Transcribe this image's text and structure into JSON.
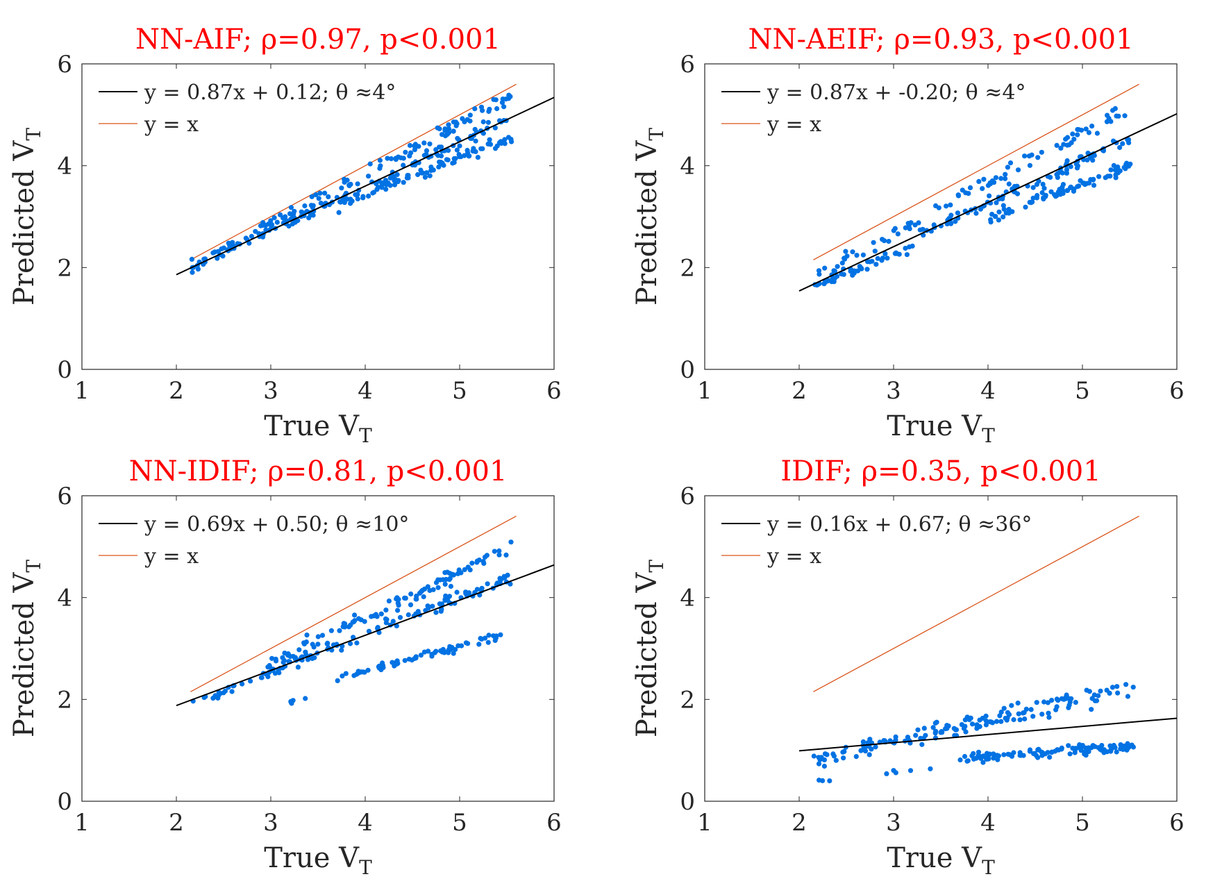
{
  "chart_data": [
    {
      "type": "scatter",
      "title": "NN-AIF; ρ=0.97, p<0.001",
      "xlabel": "True V",
      "xlabel_sub": "T",
      "ylabel": "Predicted V",
      "ylabel_sub": "T",
      "xlim": [
        1,
        6
      ],
      "ylim": [
        0,
        6
      ],
      "xticks": [
        "1",
        "2",
        "3",
        "4",
        "5",
        "6"
      ],
      "yticks": [
        "0",
        "2",
        "4",
        "6"
      ],
      "legend_position": "top-left",
      "fit": {
        "label": "y = 0.87x + 0.12; θ ≈4°",
        "slope": 0.87,
        "intercept": 0.12,
        "x": [
          2,
          6
        ],
        "color": "#000000"
      },
      "identity": {
        "label": "y = x",
        "x": [
          2.15,
          5.6
        ],
        "color": "#d95319"
      },
      "points_color": "#0072e3",
      "clusters": [
        {
          "x0": 2.15,
          "x1": 5.55,
          "slope": 1.0,
          "intercept": -0.15,
          "n": 110,
          "spread": 0.07
        },
        {
          "x0": 2.2,
          "x1": 5.5,
          "slope": 0.87,
          "intercept": 0.12,
          "n": 120,
          "spread": 0.06
        },
        {
          "x0": 3.7,
          "x1": 5.6,
          "slope": 0.7,
          "intercept": 0.65,
          "n": 90,
          "spread": 0.05
        }
      ]
    },
    {
      "type": "scatter",
      "title": "NN-AEIF; ρ=0.93, p<0.001",
      "xlabel": "True V",
      "xlabel_sub": "T",
      "ylabel": "Predicted V",
      "ylabel_sub": "T",
      "xlim": [
        1,
        6
      ],
      "ylim": [
        0,
        6
      ],
      "xticks": [
        "1",
        "2",
        "3",
        "4",
        "5",
        "6"
      ],
      "yticks": [
        "0",
        "2",
        "4",
        "6"
      ],
      "legend_position": "top-left",
      "fit": {
        "label": "y = 0.87x + -0.20; θ ≈4°",
        "slope": 0.87,
        "intercept": -0.2,
        "x": [
          2,
          6
        ],
        "color": "#000000"
      },
      "identity": {
        "label": "y = x",
        "x": [
          2.15,
          5.6
        ],
        "color": "#d95319"
      },
      "points_color": "#0072e3",
      "clusters": [
        {
          "x0": 2.2,
          "x1": 5.55,
          "slope": 1.0,
          "intercept": -0.35,
          "n": 90,
          "spread": 0.08
        },
        {
          "x0": 2.15,
          "x1": 3.2,
          "slope": 0.75,
          "intercept": 0.0,
          "n": 50,
          "spread": 0.04
        },
        {
          "x0": 3.3,
          "x1": 5.5,
          "slope": 0.85,
          "intercept": -0.15,
          "n": 90,
          "spread": 0.07
        },
        {
          "x0": 4.0,
          "x1": 5.55,
          "slope": 0.7,
          "intercept": 0.15,
          "n": 80,
          "spread": 0.05
        }
      ]
    },
    {
      "type": "scatter",
      "title": "NN-IDIF; ρ=0.81, p<0.001",
      "xlabel": "True V",
      "xlabel_sub": "T",
      "ylabel": "Predicted V",
      "ylabel_sub": "T",
      "xlim": [
        1,
        6
      ],
      "ylim": [
        0,
        6
      ],
      "xticks": [
        "1",
        "2",
        "3",
        "4",
        "5",
        "6"
      ],
      "yticks": [
        "0",
        "2",
        "4",
        "6"
      ],
      "legend_position": "top-left",
      "fit": {
        "label": "y = 0.69x + 0.50; θ ≈10°",
        "slope": 0.69,
        "intercept": 0.5,
        "x": [
          2,
          6
        ],
        "color": "#000000"
      },
      "identity": {
        "label": "y = x",
        "x": [
          2.15,
          5.6
        ],
        "color": "#d95319"
      },
      "points_color": "#0072e3",
      "clusters": [
        {
          "x0": 2.9,
          "x1": 5.55,
          "slope": 0.92,
          "intercept": -0.1,
          "n": 110,
          "spread": 0.08
        },
        {
          "x0": 2.15,
          "x1": 5.55,
          "slope": 0.73,
          "intercept": 0.35,
          "n": 120,
          "spread": 0.06
        },
        {
          "x0": 3.7,
          "x1": 5.45,
          "slope": 0.5,
          "intercept": 0.55,
          "n": 70,
          "spread": 0.04
        },
        {
          "x0": 2.9,
          "x1": 3.4,
          "slope": 0.6,
          "intercept": 0.05,
          "n": 5,
          "spread": 0.05
        }
      ]
    },
    {
      "type": "scatter",
      "title": "IDIF; ρ=0.35, p<0.001",
      "xlabel": "True V",
      "xlabel_sub": "T",
      "ylabel": "Predicted V",
      "ylabel_sub": "T",
      "xlim": [
        1,
        6
      ],
      "ylim": [
        0,
        6
      ],
      "xticks": [
        "1",
        "2",
        "3",
        "4",
        "5",
        "6"
      ],
      "yticks": [
        "0",
        "2",
        "4",
        "6"
      ],
      "legend_position": "top-left",
      "fit": {
        "label": "y = 0.16x + 0.67; θ ≈36°",
        "slope": 0.16,
        "intercept": 0.67,
        "x": [
          2,
          6
        ],
        "color": "#000000"
      },
      "identity": {
        "label": "y = x",
        "x": [
          2.15,
          5.6
        ],
        "color": "#d95319"
      },
      "points_color": "#0072e3",
      "clusters": [
        {
          "x0": 2.15,
          "x1": 5.55,
          "slope": 0.42,
          "intercept": -0.1,
          "n": 150,
          "spread": 0.09
        },
        {
          "x0": 3.7,
          "x1": 5.55,
          "slope": 0.13,
          "intercept": 0.35,
          "n": 110,
          "spread": 0.05
        },
        {
          "x0": 2.2,
          "x1": 2.35,
          "slope": 0.0,
          "intercept": 0.4,
          "n": 3,
          "spread": 0.01
        },
        {
          "x0": 2.9,
          "x1": 3.4,
          "slope": 0.2,
          "intercept": 0.0,
          "n": 5,
          "spread": 0.04
        }
      ]
    }
  ]
}
